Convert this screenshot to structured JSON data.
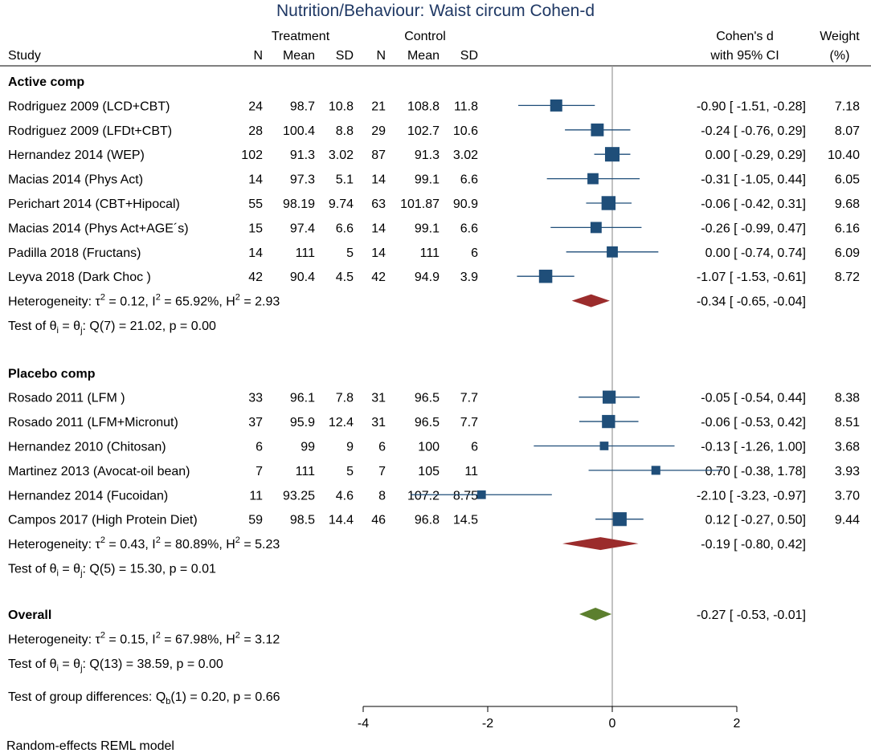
{
  "chart_data": {
    "type": "forest",
    "title": "Nutrition/Behaviour:  Waist circum Cohen-d",
    "header": {
      "treatment_group": "Treatment",
      "control_group": "Control",
      "study": "Study",
      "n": "N",
      "mean": "Mean",
      "sd": "SD",
      "effect_line1": "Cohen's d",
      "effect_line2": "with 95% CI",
      "weight_line1": "Weight",
      "weight_line2": "(%)"
    },
    "x_axis": {
      "range": [
        -4,
        2
      ],
      "ticks": [
        "-4",
        "-2",
        "0",
        "2"
      ],
      "ref_line": 0
    },
    "groups": [
      {
        "label": "Active comp",
        "studies": [
          {
            "study": "Rodriguez 2009 (LCD+CBT)",
            "t_n": "24",
            "t_mean": "98.7",
            "t_sd": "10.8",
            "c_n": "21",
            "c_mean": "108.8",
            "c_sd": "11.8",
            "d": -0.9,
            "lo": -1.51,
            "hi": -0.28,
            "ci_text": "-0.90 [ -1.51,  -0.28]",
            "weight": 7.18,
            "weight_text": "7.18"
          },
          {
            "study": "Rodriguez 2009 (LFDt+CBT)",
            "t_n": "28",
            "t_mean": "100.4",
            "t_sd": "8.8",
            "c_n": "29",
            "c_mean": "102.7",
            "c_sd": "10.6",
            "d": -0.24,
            "lo": -0.76,
            "hi": 0.29,
            "ci_text": "-0.24 [ -0.76,   0.29]",
            "weight": 8.07,
            "weight_text": "8.07"
          },
          {
            "study": "Hernandez 2014 (WEP)",
            "t_n": "102",
            "t_mean": "91.3",
            "t_sd": "3.02",
            "c_n": "87",
            "c_mean": "91.3",
            "c_sd": "3.02",
            "d": 0.0,
            "lo": -0.29,
            "hi": 0.29,
            "ci_text": "0.00 [ -0.29,   0.29]",
            "weight": 10.4,
            "weight_text": "10.40"
          },
          {
            "study": "Macias 2014 (Phys Act)",
            "t_n": "14",
            "t_mean": "97.3",
            "t_sd": "5.1",
            "c_n": "14",
            "c_mean": "99.1",
            "c_sd": "6.6",
            "d": -0.31,
            "lo": -1.05,
            "hi": 0.44,
            "ci_text": "-0.31 [ -1.05,   0.44]",
            "weight": 6.05,
            "weight_text": "6.05"
          },
          {
            "study": "Perichart 2014 (CBT+Hipocal)",
            "t_n": "55",
            "t_mean": "98.19",
            "t_sd": "9.74",
            "c_n": "63",
            "c_mean": "101.87",
            "c_sd": "90.9",
            "d": -0.06,
            "lo": -0.42,
            "hi": 0.31,
            "ci_text": "-0.06 [ -0.42,   0.31]",
            "weight": 9.68,
            "weight_text": "9.68"
          },
          {
            "study": "Macias 2014 (Phys Act+AGE´s)",
            "t_n": "15",
            "t_mean": "97.4",
            "t_sd": "6.6",
            "c_n": "14",
            "c_mean": "99.1",
            "c_sd": "6.6",
            "d": -0.26,
            "lo": -0.99,
            "hi": 0.47,
            "ci_text": "-0.26 [ -0.99,   0.47]",
            "weight": 6.16,
            "weight_text": "6.16"
          },
          {
            "study": "Padilla 2018 (Fructans)",
            "t_n": "14",
            "t_mean": "111",
            "t_sd": "5",
            "c_n": "14",
            "c_mean": "111",
            "c_sd": "6",
            "d": 0.0,
            "lo": -0.74,
            "hi": 0.74,
            "ci_text": "0.00 [ -0.74,   0.74]",
            "weight": 6.09,
            "weight_text": "6.09"
          },
          {
            "study": "Leyva 2018 (Dark Choc )",
            "t_n": "42",
            "t_mean": "90.4",
            "t_sd": "4.5",
            "c_n": "42",
            "c_mean": "94.9",
            "c_sd": "3.9",
            "d": -1.07,
            "lo": -1.53,
            "hi": -0.61,
            "ci_text": "-1.07 [ -1.53,  -0.61]",
            "weight": 8.72,
            "weight_text": "8.72"
          }
        ],
        "summary": {
          "d": -0.34,
          "lo": -0.65,
          "hi": -0.04,
          "ci_text": "-0.34 [ -0.65,  -0.04]",
          "color": "#9b2c2c"
        },
        "heterogeneity": {
          "prefix": "Heterogeneity: ",
          "tau_sym": "τ",
          "tau_rest": " = 0.12, I",
          "i_rest": " = 65.92%, H",
          "h_rest": " = 2.93",
          "exp": "2"
        },
        "test": {
          "prefix": "Test of θ",
          "sub": "i",
          "mid": " = θ",
          "sub2": "j",
          "rest": ": Q(7) = 21.02, p = 0.00"
        }
      },
      {
        "label": "Placebo comp",
        "studies": [
          {
            "study": "Rosado 2011 (LFM  )",
            "t_n": "33",
            "t_mean": "96.1",
            "t_sd": "7.8",
            "c_n": "31",
            "c_mean": "96.5",
            "c_sd": "7.7",
            "d": -0.05,
            "lo": -0.54,
            "hi": 0.44,
            "ci_text": "-0.05 [ -0.54,   0.44]",
            "weight": 8.38,
            "weight_text": "8.38"
          },
          {
            "study": "Rosado 2011 (LFM+Micronut)",
            "t_n": "37",
            "t_mean": "95.9",
            "t_sd": "12.4",
            "c_n": "31",
            "c_mean": "96.5",
            "c_sd": "7.7",
            "d": -0.06,
            "lo": -0.53,
            "hi": 0.42,
            "ci_text": "-0.06 [ -0.53,   0.42]",
            "weight": 8.51,
            "weight_text": "8.51"
          },
          {
            "study": "Hernandez 2010 (Chitosan)",
            "t_n": "6",
            "t_mean": "99",
            "t_sd": "9",
            "c_n": "6",
            "c_mean": "100",
            "c_sd": "6",
            "d": -0.13,
            "lo": -1.26,
            "hi": 1.0,
            "ci_text": "-0.13 [ -1.26,   1.00]",
            "weight": 3.68,
            "weight_text": "3.68"
          },
          {
            "study": "Martinez 2013 (Avocat-oil bean)",
            "t_n": "7",
            "t_mean": "111",
            "t_sd": "5",
            "c_n": "7",
            "c_mean": "105",
            "c_sd": "11",
            "d": 0.7,
            "lo": -0.38,
            "hi": 1.78,
            "ci_text": "0.70 [ -0.38,   1.78]",
            "weight": 3.93,
            "weight_text": "3.93"
          },
          {
            "study": "Hernandez 2014 (Fucoidan)",
            "t_n": "11",
            "t_mean": "93.25",
            "t_sd": "4.6",
            "c_n": "8",
            "c_mean": "107.2",
            "c_sd": "8.75",
            "d": -2.1,
            "lo": -3.23,
            "hi": -0.97,
            "ci_text": "-2.10 [ -3.23,  -0.97]",
            "weight": 3.7,
            "weight_text": "3.70"
          },
          {
            "study": "Campos 2017 (High Protein Diet)",
            "t_n": "59",
            "t_mean": "98.5",
            "t_sd": "14.4",
            "c_n": "46",
            "c_mean": "96.8",
            "c_sd": "14.5",
            "d": 0.12,
            "lo": -0.27,
            "hi": 0.5,
            "ci_text": "0.12 [ -0.27,   0.50]",
            "weight": 9.44,
            "weight_text": "9.44"
          }
        ],
        "summary": {
          "d": -0.19,
          "lo": -0.8,
          "hi": 0.42,
          "ci_text": "-0.19 [ -0.80,   0.42]",
          "color": "#9b2c2c"
        },
        "heterogeneity": {
          "prefix": "Heterogeneity: ",
          "tau_sym": "τ",
          "tau_rest": " = 0.43, I",
          "i_rest": " = 80.89%, H",
          "h_rest": " = 5.23",
          "exp": "2"
        },
        "test": {
          "prefix": "Test of θ",
          "sub": "i",
          "mid": " = θ",
          "sub2": "j",
          "rest": ": Q(5) = 15.30, p = 0.01"
        }
      }
    ],
    "overall": {
      "label": "Overall",
      "d": -0.27,
      "lo": -0.53,
      "hi": -0.01,
      "ci_text": "-0.27 [ -0.53,  -0.01]",
      "color": "#5c7f2e",
      "heterogeneity": {
        "prefix": "Heterogeneity: ",
        "tau_sym": "τ",
        "tau_rest": " = 0.15, I",
        "i_rest": " = 67.98%, H",
        "h_rest": " = 3.12",
        "exp": "2"
      },
      "test": {
        "prefix": "Test of θ",
        "sub": "i",
        "mid": " = θ",
        "sub2": "j",
        "rest": ": Q(13) = 38.59, p = 0.00"
      },
      "group_test": {
        "prefix": "Test of group differences: Q",
        "sub": "b",
        "rest": "(1) = 0.20, p = 0.66"
      }
    },
    "footnote": "Random-effects REML model",
    "colors": {
      "marker": "#1f4e79",
      "ci_line": "#1f4e79"
    }
  }
}
